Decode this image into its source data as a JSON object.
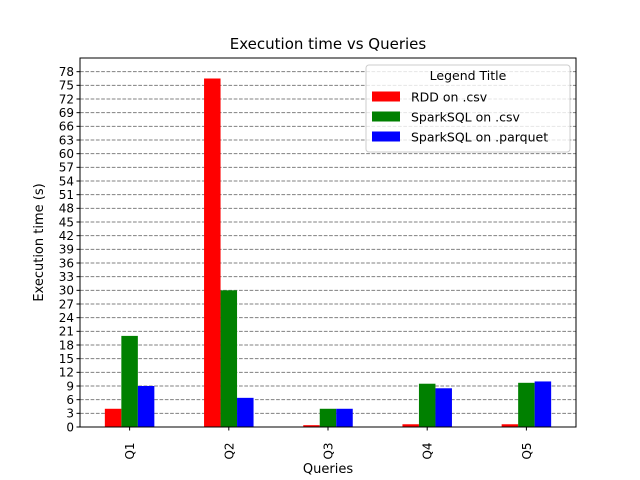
{
  "chart_data": {
    "type": "bar",
    "title": "Execution time vs Queries",
    "xlabel": "Queries",
    "ylabel": "Execution time (s)",
    "categories": [
      "Q1",
      "Q2",
      "Q3",
      "Q4",
      "Q5"
    ],
    "series": [
      {
        "name": "RDD on .csv",
        "color": "#ff0000",
        "values": [
          4.0,
          76.5,
          0.4,
          0.6,
          0.6
        ]
      },
      {
        "name": "SparkSQL on .csv",
        "color": "#008000",
        "values": [
          20.0,
          30.0,
          4.0,
          9.5,
          9.7
        ]
      },
      {
        "name": "SparkSQL on .parquet",
        "color": "#0000ff",
        "values": [
          9.0,
          6.4,
          4.0,
          8.5,
          10.0
        ]
      }
    ],
    "ylim": [
      0,
      81
    ],
    "yticks": [
      0,
      3,
      6,
      9,
      12,
      15,
      18,
      21,
      24,
      27,
      30,
      33,
      36,
      39,
      42,
      45,
      48,
      51,
      54,
      57,
      60,
      63,
      66,
      69,
      72,
      75,
      78
    ],
    "grid": "horizontal dashed",
    "legend": {
      "title": "Legend Title",
      "position": "upper-right"
    }
  }
}
